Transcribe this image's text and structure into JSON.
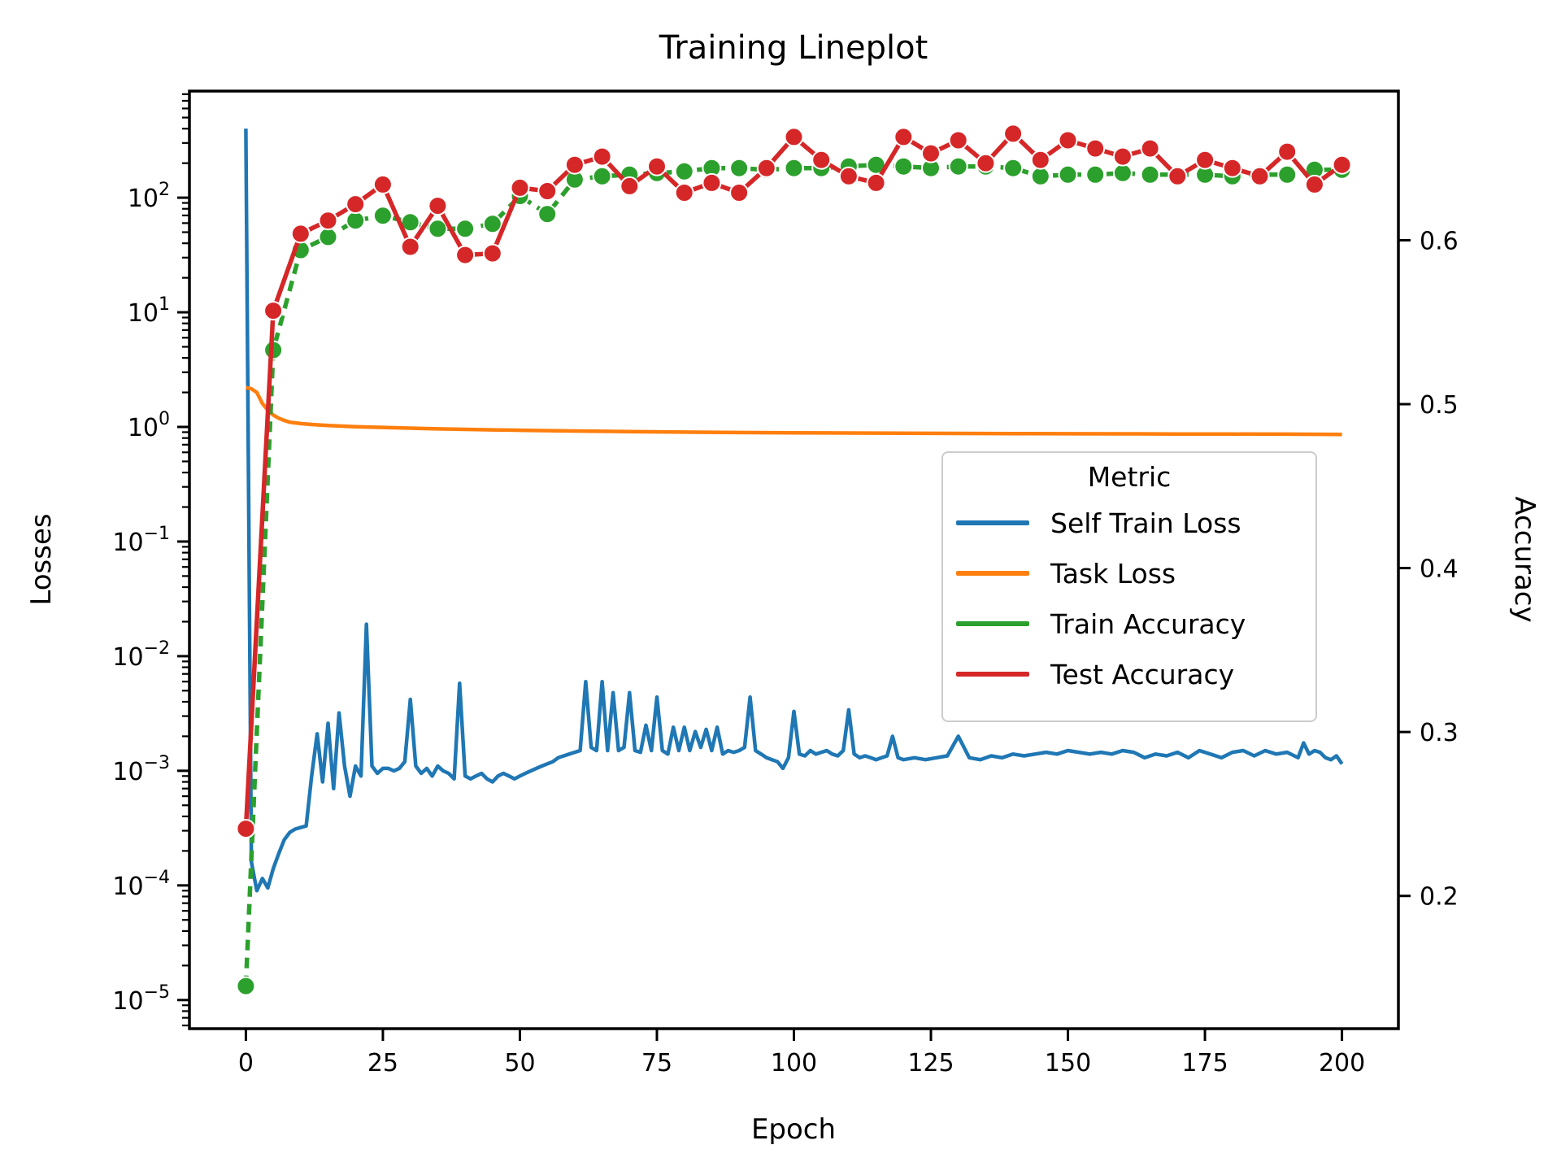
{
  "chart_data": {
    "type": "line",
    "title": "Training Lineplot",
    "xlabel": "Epoch",
    "ylabel_left": "Losses",
    "ylabel_right": "Accuracy",
    "grid": false,
    "x_ticks": [
      0,
      25,
      50,
      75,
      100,
      125,
      150,
      175,
      200
    ],
    "xlim": [
      -10.3,
      210.3
    ],
    "left_axis": {
      "scale": "log",
      "label": "Losses",
      "tick_exponents": [
        2,
        1,
        0,
        -1,
        -2,
        -3,
        -4,
        -5
      ],
      "ylim_log": [
        -5.25,
        2.93
      ]
    },
    "right_axis": {
      "scale": "linear",
      "label": "Accuracy",
      "ticks": [
        0.6,
        0.5,
        0.4,
        0.3,
        0.2
      ],
      "ylim": [
        0.119,
        0.691
      ]
    },
    "legend": {
      "title": "Metric",
      "position": "center-right",
      "entries": [
        "Self Train Loss",
        "Task Loss",
        "Train Accuracy",
        "Test Accuracy"
      ]
    },
    "colors": {
      "self_train_loss": "#1f77b4",
      "task_loss": "#ff7f0e",
      "train_accuracy": "#2ca02c",
      "test_accuracy": "#d62728"
    },
    "series": [
      {
        "name": "Self Train Loss",
        "color": "#1f77b4",
        "axis": "left",
        "style": "solid",
        "markers": false,
        "points": [
          [
            0,
            400
          ],
          [
            1,
            0.00016
          ],
          [
            2,
            9e-05
          ],
          [
            3,
            0.000115
          ],
          [
            4,
            9.5e-05
          ],
          [
            5,
            0.00014
          ],
          [
            6,
            0.00019
          ],
          [
            7,
            0.00025
          ],
          [
            8,
            0.00029
          ],
          [
            9,
            0.00031
          ],
          [
            10,
            0.00032
          ],
          [
            11,
            0.00033
          ],
          [
            12,
            0.0009
          ],
          [
            13,
            0.0021
          ],
          [
            14,
            0.0008
          ],
          [
            15,
            0.0026
          ],
          [
            16,
            0.0007
          ],
          [
            17,
            0.0032
          ],
          [
            18,
            0.0011
          ],
          [
            19,
            0.0006
          ],
          [
            20,
            0.0011
          ],
          [
            21,
            0.0009
          ],
          [
            22,
            0.019
          ],
          [
            23,
            0.0011
          ],
          [
            24,
            0.00095
          ],
          [
            25,
            0.00105
          ],
          [
            26,
            0.00105
          ],
          [
            27,
            0.001
          ],
          [
            28,
            0.00105
          ],
          [
            29,
            0.0012
          ],
          [
            30,
            0.0042
          ],
          [
            31,
            0.0011
          ],
          [
            32,
            0.00095
          ],
          [
            33,
            0.00105
          ],
          [
            34,
            0.0009
          ],
          [
            35,
            0.0011
          ],
          [
            36,
            0.001
          ],
          [
            37,
            0.00095
          ],
          [
            38,
            0.00085
          ],
          [
            39,
            0.0058
          ],
          [
            40,
            0.0009
          ],
          [
            41,
            0.00085
          ],
          [
            42,
            0.0009
          ],
          [
            43,
            0.00095
          ],
          [
            44,
            0.00085
          ],
          [
            45,
            0.0008
          ],
          [
            46,
            0.0009
          ],
          [
            47,
            0.00095
          ],
          [
            48,
            0.0009
          ],
          [
            49,
            0.00085
          ],
          [
            50,
            0.0009
          ],
          [
            51,
            0.00095
          ],
          [
            52,
            0.001
          ],
          [
            53,
            0.00105
          ],
          [
            54,
            0.0011
          ],
          [
            55,
            0.00115
          ],
          [
            56,
            0.0012
          ],
          [
            57,
            0.0013
          ],
          [
            58,
            0.00135
          ],
          [
            59,
            0.0014
          ],
          [
            60,
            0.00145
          ],
          [
            61,
            0.0015
          ],
          [
            62,
            0.006
          ],
          [
            63,
            0.0016
          ],
          [
            64,
            0.0015
          ],
          [
            65,
            0.006
          ],
          [
            66,
            0.0015
          ],
          [
            67,
            0.0048
          ],
          [
            68,
            0.0015
          ],
          [
            69,
            0.0016
          ],
          [
            70,
            0.0048
          ],
          [
            71,
            0.0015
          ],
          [
            72,
            0.00145
          ],
          [
            73,
            0.0025
          ],
          [
            74,
            0.0015
          ],
          [
            75,
            0.0044
          ],
          [
            76,
            0.0015
          ],
          [
            77,
            0.0014
          ],
          [
            78,
            0.0024
          ],
          [
            79,
            0.0015
          ],
          [
            80,
            0.0024
          ],
          [
            81,
            0.0015
          ],
          [
            82,
            0.0022
          ],
          [
            83,
            0.0016
          ],
          [
            84,
            0.0023
          ],
          [
            85,
            0.0015
          ],
          [
            86,
            0.0024
          ],
          [
            87,
            0.0014
          ],
          [
            88,
            0.0015
          ],
          [
            89,
            0.00145
          ],
          [
            90,
            0.0015
          ],
          [
            91,
            0.0016
          ],
          [
            92,
            0.0044
          ],
          [
            93,
            0.0015
          ],
          [
            94,
            0.0014
          ],
          [
            95,
            0.0013
          ],
          [
            96,
            0.00125
          ],
          [
            97,
            0.0012
          ],
          [
            98,
            0.00105
          ],
          [
            99,
            0.0013
          ],
          [
            100,
            0.0033
          ],
          [
            101,
            0.0014
          ],
          [
            102,
            0.00135
          ],
          [
            103,
            0.0015
          ],
          [
            104,
            0.0014
          ],
          [
            105,
            0.00145
          ],
          [
            106,
            0.0015
          ],
          [
            107,
            0.0014
          ],
          [
            108,
            0.00135
          ],
          [
            109,
            0.0015
          ],
          [
            110,
            0.0034
          ],
          [
            111,
            0.0014
          ],
          [
            112,
            0.0013
          ],
          [
            113,
            0.00135
          ],
          [
            114,
            0.0013
          ],
          [
            115,
            0.00125
          ],
          [
            116,
            0.0013
          ],
          [
            117,
            0.00135
          ],
          [
            118,
            0.002
          ],
          [
            119,
            0.0013
          ],
          [
            120,
            0.00125
          ],
          [
            122,
            0.0013
          ],
          [
            124,
            0.00125
          ],
          [
            126,
            0.0013
          ],
          [
            128,
            0.00135
          ],
          [
            130,
            0.002
          ],
          [
            132,
            0.0013
          ],
          [
            134,
            0.00125
          ],
          [
            136,
            0.00135
          ],
          [
            138,
            0.0013
          ],
          [
            140,
            0.0014
          ],
          [
            142,
            0.00135
          ],
          [
            144,
            0.0014
          ],
          [
            146,
            0.00145
          ],
          [
            148,
            0.0014
          ],
          [
            150,
            0.0015
          ],
          [
            152,
            0.00145
          ],
          [
            154,
            0.0014
          ],
          [
            156,
            0.00145
          ],
          [
            158,
            0.0014
          ],
          [
            160,
            0.0015
          ],
          [
            162,
            0.00145
          ],
          [
            164,
            0.0013
          ],
          [
            166,
            0.0014
          ],
          [
            168,
            0.00135
          ],
          [
            170,
            0.00145
          ],
          [
            172,
            0.0013
          ],
          [
            174,
            0.0015
          ],
          [
            176,
            0.0014
          ],
          [
            178,
            0.0013
          ],
          [
            180,
            0.00145
          ],
          [
            182,
            0.0015
          ],
          [
            184,
            0.00135
          ],
          [
            186,
            0.0015
          ],
          [
            188,
            0.0014
          ],
          [
            190,
            0.00145
          ],
          [
            192,
            0.0013
          ],
          [
            193,
            0.00175
          ],
          [
            194,
            0.0014
          ],
          [
            195,
            0.0015
          ],
          [
            196,
            0.00145
          ],
          [
            197,
            0.0013
          ],
          [
            198,
            0.00125
          ],
          [
            199,
            0.00135
          ],
          [
            200,
            0.00115
          ]
        ]
      },
      {
        "name": "Task Loss",
        "color": "#ff7f0e",
        "axis": "left",
        "style": "solid",
        "markers": false,
        "points": [
          [
            0,
            2.2
          ],
          [
            1,
            2.15
          ],
          [
            2,
            2.0
          ],
          [
            3,
            1.6
          ],
          [
            4,
            1.4
          ],
          [
            5,
            1.27
          ],
          [
            6,
            1.19
          ],
          [
            7,
            1.14
          ],
          [
            8,
            1.1
          ],
          [
            10,
            1.07
          ],
          [
            12,
            1.05
          ],
          [
            15,
            1.03
          ],
          [
            20,
            1.005
          ],
          [
            25,
            0.99
          ],
          [
            30,
            0.975
          ],
          [
            35,
            0.962
          ],
          [
            40,
            0.952
          ],
          [
            45,
            0.943
          ],
          [
            50,
            0.935
          ],
          [
            60,
            0.921
          ],
          [
            70,
            0.91
          ],
          [
            80,
            0.901
          ],
          [
            90,
            0.894
          ],
          [
            100,
            0.889
          ],
          [
            110,
            0.884
          ],
          [
            120,
            0.88
          ],
          [
            130,
            0.877
          ],
          [
            140,
            0.874
          ],
          [
            150,
            0.872
          ],
          [
            160,
            0.87
          ],
          [
            170,
            0.868
          ],
          [
            180,
            0.866
          ],
          [
            190,
            0.864
          ],
          [
            200,
            0.861
          ]
        ]
      },
      {
        "name": "Train Accuracy",
        "color": "#2ca02c",
        "axis": "right",
        "style": "dashed",
        "markers": true,
        "x": [
          0,
          5,
          10,
          15,
          20,
          25,
          30,
          35,
          40,
          45,
          50,
          55,
          60,
          65,
          70,
          75,
          80,
          85,
          90,
          95,
          100,
          105,
          110,
          115,
          120,
          125,
          130,
          135,
          140,
          145,
          150,
          155,
          160,
          165,
          170,
          175,
          180,
          185,
          190,
          195,
          200
        ],
        "y": [
          0.145,
          0.533,
          0.594,
          0.602,
          0.612,
          0.615,
          0.611,
          0.607,
          0.607,
          0.61,
          0.627,
          0.616,
          0.637,
          0.639,
          0.64,
          0.641,
          0.642,
          0.644,
          0.644,
          0.643,
          0.644,
          0.644,
          0.645,
          0.646,
          0.645,
          0.644,
          0.645,
          0.645,
          0.644,
          0.639,
          0.64,
          0.64,
          0.641,
          0.64,
          0.64,
          0.64,
          0.639,
          0.64,
          0.64,
          0.643,
          0.643
        ]
      },
      {
        "name": "Test Accuracy",
        "color": "#d62728",
        "axis": "right",
        "style": "solid",
        "markers": true,
        "x": [
          0,
          5,
          10,
          15,
          20,
          25,
          30,
          35,
          40,
          45,
          50,
          55,
          60,
          65,
          70,
          75,
          80,
          85,
          90,
          95,
          100,
          105,
          110,
          115,
          120,
          125,
          130,
          135,
          140,
          145,
          150,
          155,
          160,
          165,
          170,
          175,
          180,
          185,
          190,
          195,
          200
        ],
        "y": [
          0.241,
          0.557,
          0.604,
          0.612,
          0.622,
          0.634,
          0.596,
          0.621,
          0.591,
          0.592,
          0.632,
          0.63,
          0.646,
          0.651,
          0.633,
          0.645,
          0.629,
          0.635,
          0.629,
          0.644,
          0.663,
          0.649,
          0.639,
          0.635,
          0.663,
          0.653,
          0.661,
          0.647,
          0.665,
          0.649,
          0.661,
          0.656,
          0.651,
          0.656,
          0.639,
          0.649,
          0.644,
          0.639,
          0.654,
          0.634,
          0.646
        ]
      }
    ]
  }
}
